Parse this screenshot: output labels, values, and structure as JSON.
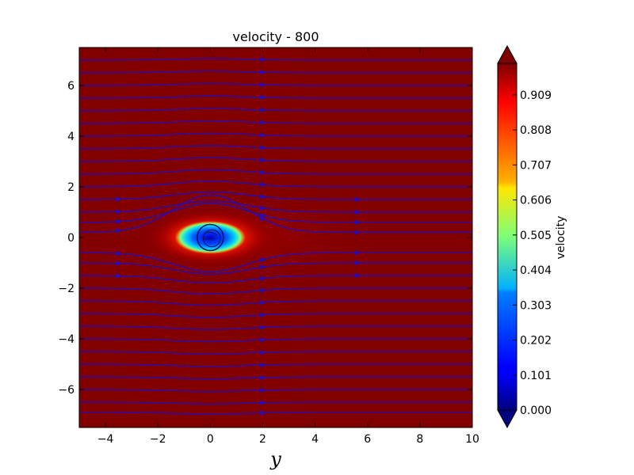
{
  "chart_data": {
    "type": "heatmap",
    "title": "velocity - 800",
    "xlabel": "y",
    "ylabel": "",
    "xlim": [
      -5,
      10
    ],
    "ylim": [
      -7.5,
      7.5
    ],
    "x_ticks": [
      -4,
      -2,
      0,
      2,
      4,
      6,
      8,
      10
    ],
    "y_ticks": [
      -6,
      -4,
      -2,
      0,
      2,
      4,
      6
    ],
    "x_tick_labels": [
      "−4",
      "−2",
      "0",
      "2",
      "4",
      "6",
      "8",
      "10"
    ],
    "y_tick_labels": [
      "−6",
      "−4",
      "−2",
      "0",
      "2",
      "4",
      "6"
    ],
    "colormap": "jet",
    "colorbar": {
      "label": "velocity",
      "range": [
        0.0,
        1.0
      ],
      "ticks": [
        0.0,
        0.101,
        0.202,
        0.303,
        0.404,
        0.505,
        0.606,
        0.707,
        0.808,
        0.909
      ],
      "tick_labels": [
        "0.000",
        "0.101",
        "0.202",
        "0.303",
        "0.404",
        "0.505",
        "0.606",
        "0.707",
        "0.808",
        "0.909"
      ],
      "extend": "both"
    },
    "obstacle_center": [
      0,
      0
    ],
    "obstacle_radius": 0.5,
    "streamline_y": [
      -6.9,
      -6.5,
      -6.0,
      -5.5,
      -5.0,
      -4.5,
      -4.0,
      -3.5,
      -3.0,
      -2.5,
      -2.0,
      -1.5,
      -1.0,
      -0.6,
      0.2,
      0.6,
      1.0,
      1.5,
      2.0,
      2.5,
      3.0,
      3.5,
      4.0,
      4.5,
      5.0,
      5.5,
      6.0,
      6.5,
      7.0
    ],
    "colors": {
      "streamline": "#1a0dcf",
      "background": "#ffffff"
    }
  }
}
